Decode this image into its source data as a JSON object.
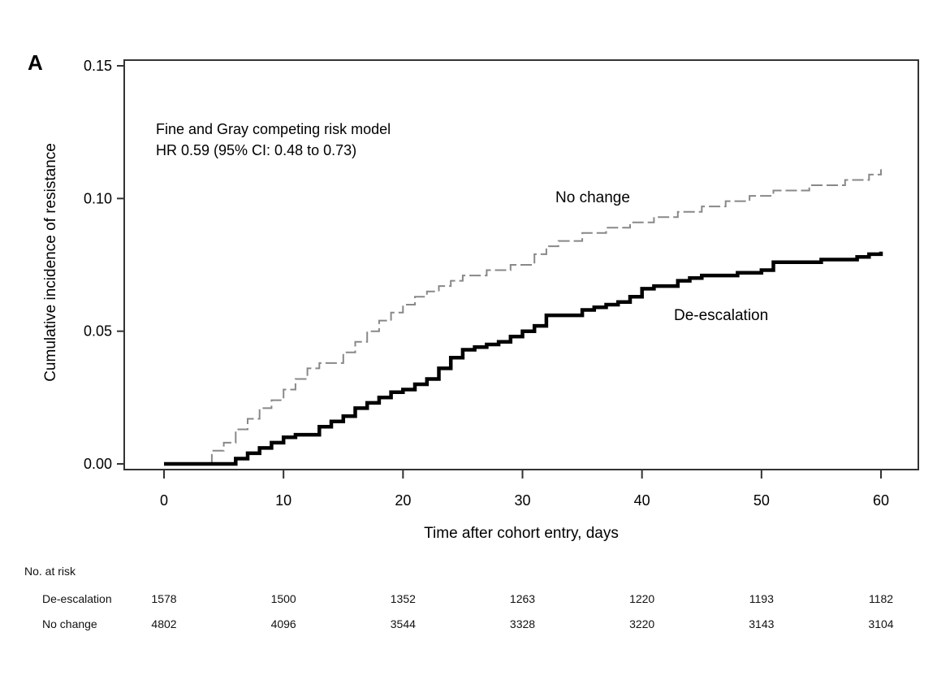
{
  "panel_label": "A",
  "annotation": {
    "line1": "Fine and Gray competing risk model",
    "line2": "HR 0.59 (95% CI: 0.48 to 0.73)"
  },
  "chart_data": {
    "type": "line",
    "step": true,
    "xlabel": "Time after cohort entry, days",
    "ylabel": "Cumulative incidence of resistance",
    "xlim": [
      0,
      60
    ],
    "ylim": [
      0,
      0.15
    ],
    "xticks": [
      "0",
      "10",
      "20",
      "30",
      "40",
      "50",
      "60"
    ],
    "yticks": [
      "0.00",
      "0.05",
      "0.10",
      "0.15"
    ],
    "series": [
      {
        "name": "No change",
        "style": "dashed",
        "color": "#888888",
        "x": [
          0,
          4,
          5,
          6,
          7,
          8,
          9,
          10,
          11,
          12,
          13,
          15,
          16,
          17,
          18,
          19,
          20,
          21,
          22,
          23,
          24,
          25,
          27,
          29,
          31,
          32,
          33,
          35,
          37,
          39,
          41,
          43,
          45,
          47,
          49,
          51,
          54,
          57,
          59,
          60
        ],
        "values": [
          0,
          0.005,
          0.008,
          0.013,
          0.017,
          0.021,
          0.024,
          0.028,
          0.032,
          0.036,
          0.038,
          0.042,
          0.046,
          0.05,
          0.054,
          0.057,
          0.06,
          0.063,
          0.065,
          0.067,
          0.069,
          0.071,
          0.073,
          0.075,
          0.079,
          0.082,
          0.084,
          0.087,
          0.089,
          0.091,
          0.093,
          0.095,
          0.097,
          0.099,
          0.101,
          0.103,
          0.105,
          0.107,
          0.109,
          0.111
        ]
      },
      {
        "name": "De-escalation",
        "style": "solid",
        "color": "#000000",
        "x": [
          0,
          6,
          7,
          8,
          9,
          10,
          11,
          13,
          14,
          15,
          16,
          17,
          18,
          19,
          20,
          21,
          22,
          23,
          24,
          25,
          26,
          27,
          28,
          29,
          30,
          31,
          32,
          34,
          35,
          36,
          37,
          38,
          39,
          40,
          41,
          43,
          44,
          45,
          46,
          48,
          49,
          50,
          51,
          55,
          57,
          58,
          59,
          60
        ],
        "values": [
          0,
          0.002,
          0.004,
          0.006,
          0.008,
          0.01,
          0.011,
          0.014,
          0.016,
          0.018,
          0.021,
          0.023,
          0.025,
          0.027,
          0.028,
          0.03,
          0.032,
          0.036,
          0.04,
          0.043,
          0.044,
          0.045,
          0.046,
          0.048,
          0.05,
          0.052,
          0.056,
          0.056,
          0.058,
          0.059,
          0.06,
          0.061,
          0.063,
          0.066,
          0.067,
          0.069,
          0.07,
          0.071,
          0.071,
          0.072,
          0.072,
          0.073,
          0.076,
          0.077,
          0.077,
          0.078,
          0.079,
          0.08
        ]
      }
    ]
  },
  "risk_table": {
    "title": "No. at risk",
    "rows": [
      {
        "label": "De-escalation",
        "values": [
          "1578",
          "1500",
          "1352",
          "1263",
          "1220",
          "1193",
          "1182"
        ]
      },
      {
        "label": "No change",
        "values": [
          "4802",
          "4096",
          "3544",
          "3328",
          "3220",
          "3143",
          "3104"
        ]
      }
    ]
  }
}
